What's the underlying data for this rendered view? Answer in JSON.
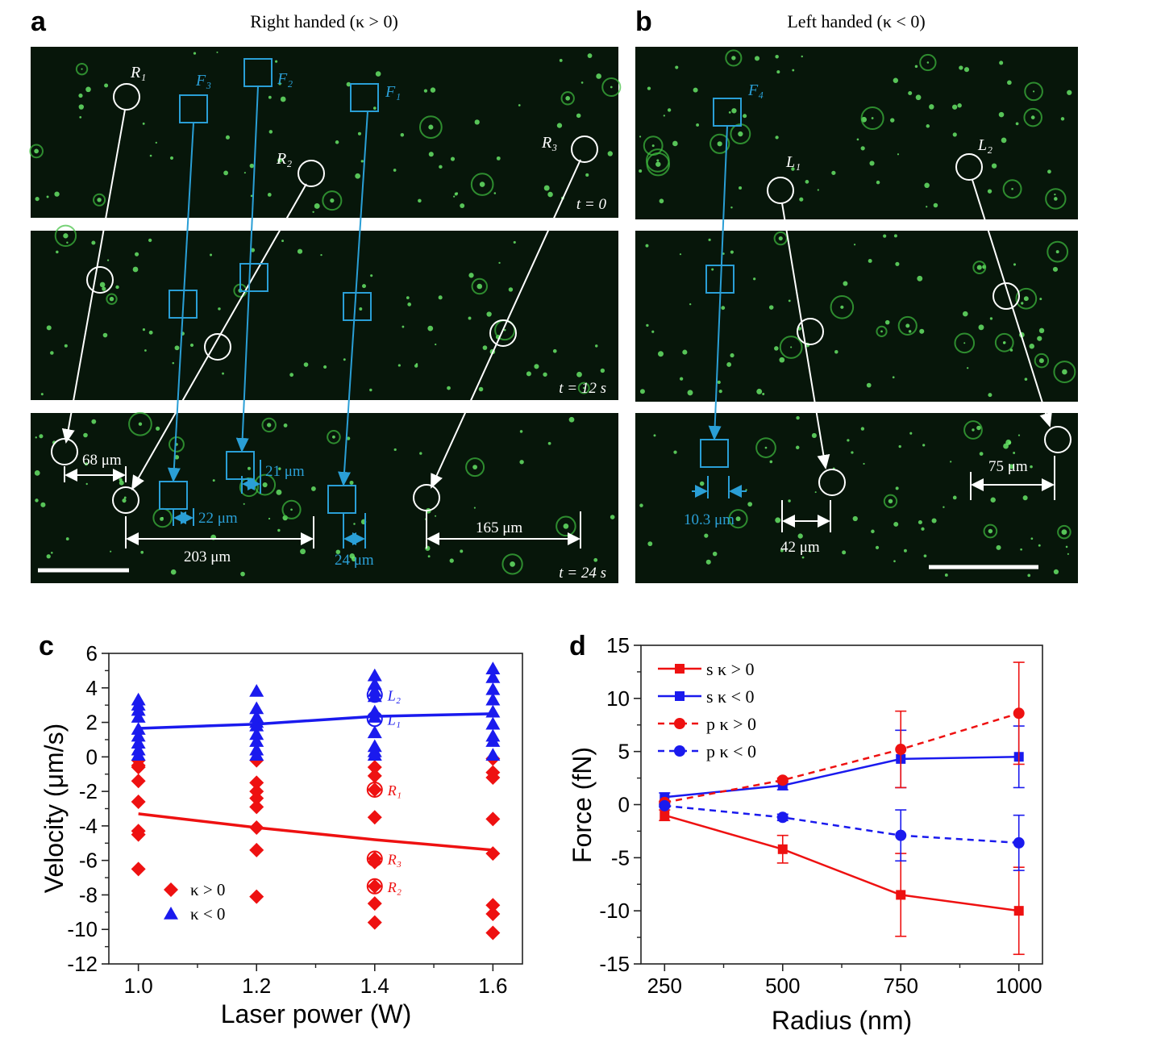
{
  "panels": {
    "a": {
      "letter": "a",
      "title": "Right handed (κ > 0)",
      "labels": {
        "R1": "R₁",
        "R2": "R₂",
        "R3": "R₃",
        "F1": "F₁",
        "F2": "F₂",
        "F3": "F₃"
      },
      "times": [
        "t = 0",
        "t = 12 s",
        "t = 24 s"
      ],
      "distances": {
        "r1": "68 μm",
        "f3": "22 μm",
        "f2": "21 μm",
        "f1": "24 μm",
        "r2": "203 μm",
        "r3": "165 μm"
      }
    },
    "b": {
      "letter": "b",
      "title": "Left handed (κ < 0)",
      "labels": {
        "F4": "F₄",
        "L1": "L₁",
        "L2": "L₂"
      },
      "distances": {
        "f4": "10.3 μm",
        "l1": "42 μm",
        "l2": "75 μm"
      }
    },
    "c": {
      "letter": "c"
    },
    "d": {
      "letter": "d"
    }
  },
  "colors": {
    "red": "#ee1111",
    "blue": "#1a1aee",
    "cyan": "#2a9fd6",
    "white": "#ffffff",
    "bg": "#07160a"
  },
  "chart_data": [
    {
      "panel": "c",
      "type": "scatter",
      "xlabel": "Laser power (W)",
      "ylabel": "Velocity (μm/s)",
      "xlim": [
        0.95,
        1.65
      ],
      "ylim": [
        -12,
        6
      ],
      "xticks": [
        "1.0",
        "1.2",
        "1.4",
        "1.6"
      ],
      "yticks": [
        "6",
        "4",
        "2",
        "0",
        "-2",
        "-4",
        "-6",
        "-8",
        "-10",
        "-12"
      ],
      "grid": false,
      "legend": "bottom-left",
      "series": [
        {
          "name": "κ > 0",
          "color": "#ee1111",
          "marker": "diamond",
          "points": [
            [
              1.0,
              -0.2
            ],
            [
              1.0,
              -0.5
            ],
            [
              1.0,
              -0.6
            ],
            [
              1.0,
              -1.4
            ],
            [
              1.0,
              -2.6
            ],
            [
              1.0,
              -4.3
            ],
            [
              1.0,
              -4.5
            ],
            [
              1.0,
              -6.5
            ],
            [
              1.2,
              -0.2
            ],
            [
              1.2,
              -1.5
            ],
            [
              1.2,
              -2.0
            ],
            [
              1.2,
              -2.4
            ],
            [
              1.2,
              -2.9
            ],
            [
              1.2,
              -4.1
            ],
            [
              1.2,
              -5.4
            ],
            [
              1.2,
              -8.1
            ],
            [
              1.4,
              -0.6
            ],
            [
              1.4,
              -1.1
            ],
            [
              1.4,
              -1.9
            ],
            [
              1.4,
              -3.5
            ],
            [
              1.4,
              -5.9
            ],
            [
              1.4,
              -6.1
            ],
            [
              1.4,
              -7.5
            ],
            [
              1.4,
              -8.5
            ],
            [
              1.4,
              -9.6
            ],
            [
              1.6,
              -0.1
            ],
            [
              1.6,
              -0.9
            ],
            [
              1.6,
              -1.2
            ],
            [
              1.6,
              -3.6
            ],
            [
              1.6,
              -5.6
            ],
            [
              1.6,
              -8.6
            ],
            [
              1.6,
              -9.1
            ],
            [
              1.6,
              -10.2
            ]
          ],
          "fit": [
            [
              1.0,
              -3.3
            ],
            [
              1.2,
              -4.1
            ],
            [
              1.4,
              -4.8
            ],
            [
              1.6,
              -5.4
            ]
          ]
        },
        {
          "name": "κ < 0",
          "color": "#1a1aee",
          "marker": "triangle",
          "points": [
            [
              1.0,
              3.3
            ],
            [
              1.0,
              3.0
            ],
            [
              1.0,
              2.7
            ],
            [
              1.0,
              2.3
            ],
            [
              1.0,
              1.6
            ],
            [
              1.0,
              1.2
            ],
            [
              1.0,
              0.8
            ],
            [
              1.0,
              0.4
            ],
            [
              1.0,
              0.1
            ],
            [
              1.2,
              3.8
            ],
            [
              1.2,
              2.8
            ],
            [
              1.2,
              2.3
            ],
            [
              1.2,
              2.0
            ],
            [
              1.2,
              1.8
            ],
            [
              1.2,
              1.3
            ],
            [
              1.2,
              0.9
            ],
            [
              1.2,
              0.4
            ],
            [
              1.2,
              0.1
            ],
            [
              1.4,
              4.7
            ],
            [
              1.4,
              4.2
            ],
            [
              1.4,
              3.8
            ],
            [
              1.4,
              3.5
            ],
            [
              1.4,
              2.6
            ],
            [
              1.4,
              2.3
            ],
            [
              1.4,
              1.4
            ],
            [
              1.4,
              0.6
            ],
            [
              1.4,
              0.3
            ],
            [
              1.4,
              0.1
            ],
            [
              1.6,
              5.1
            ],
            [
              1.6,
              4.6
            ],
            [
              1.6,
              3.9
            ],
            [
              1.6,
              3.3
            ],
            [
              1.6,
              2.6
            ],
            [
              1.6,
              1.9
            ],
            [
              1.6,
              1.2
            ],
            [
              1.6,
              0.9
            ],
            [
              1.6,
              0.1
            ]
          ],
          "fit": [
            [
              1.0,
              1.65
            ],
            [
              1.2,
              1.9
            ],
            [
              1.4,
              2.35
            ],
            [
              1.6,
              2.5
            ]
          ]
        }
      ],
      "annotations": [
        {
          "label": "L₂",
          "x": 1.4,
          "y": 3.6,
          "color": "#1a1aee"
        },
        {
          "label": "L₁",
          "x": 1.4,
          "y": 2.2,
          "color": "#1a1aee"
        },
        {
          "label": "R₁",
          "x": 1.4,
          "y": -1.9,
          "color": "#ee1111"
        },
        {
          "label": "R₃",
          "x": 1.4,
          "y": -5.9,
          "color": "#ee1111"
        },
        {
          "label": "R₂",
          "x": 1.4,
          "y": -7.5,
          "color": "#ee1111"
        }
      ]
    },
    {
      "panel": "d",
      "type": "line",
      "xlabel": "Radius (nm)",
      "ylabel": "Force (fN)",
      "xlim": [
        200,
        1050
      ],
      "ylim": [
        -15,
        15
      ],
      "x": [
        250,
        500,
        750,
        1000
      ],
      "xticks": [
        "250",
        "500",
        "750",
        "1000"
      ],
      "yticks": [
        "15",
        "10",
        "5",
        "0",
        "-5",
        "-10",
        "-15"
      ],
      "grid": false,
      "legend": "top-left",
      "series": [
        {
          "name": "s κ > 0",
          "color": "#ee1111",
          "marker": "square",
          "dash": false,
          "values": [
            -1.0,
            -4.2,
            -8.5,
            -10.0
          ],
          "errors": [
            0.5,
            1.3,
            3.9,
            4.1
          ]
        },
        {
          "name": "s κ < 0",
          "color": "#1a1aee",
          "marker": "square",
          "dash": false,
          "values": [
            0.7,
            1.8,
            4.3,
            4.5
          ],
          "errors": [
            0.4,
            0.4,
            2.7,
            2.9
          ]
        },
        {
          "name": "p κ > 0",
          "color": "#ee1111",
          "marker": "circle",
          "dash": true,
          "values": [
            0.2,
            2.3,
            5.2,
            8.6
          ],
          "errors": [
            0.1,
            0.2,
            3.6,
            4.8
          ]
        },
        {
          "name": "p κ < 0",
          "color": "#1a1aee",
          "marker": "circle",
          "dash": true,
          "values": [
            -0.1,
            -1.2,
            -2.9,
            -3.6
          ],
          "errors": [
            0.1,
            0.3,
            2.4,
            2.6
          ]
        }
      ]
    }
  ]
}
